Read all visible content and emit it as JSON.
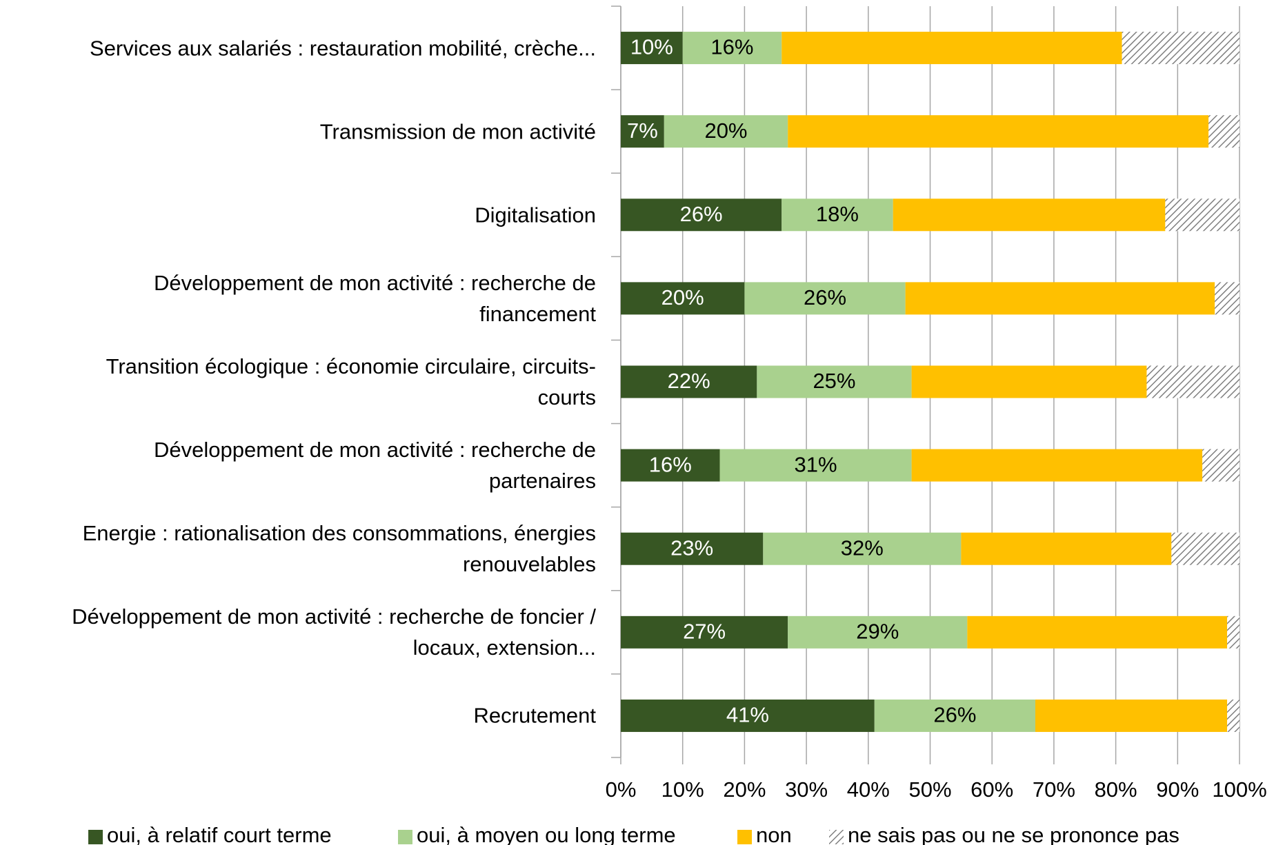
{
  "chart_data": {
    "type": "stacked_bar_horizontal",
    "categories": [
      "Services aux salariés : restauration mobilité, crèche...",
      "Transmission de mon activité",
      "Digitalisation",
      "Développement de mon activité : recherche de\nfinancement",
      "Transition écologique : économie circulaire, circuits-\ncourts",
      "Développement de mon activité : recherche de\npartenaires",
      "Energie : rationalisation des consommations, énergies\nrenouvelables",
      "Développement de mon activité : recherche de foncier /\nlocaux, extension...",
      "Recrutement"
    ],
    "series": [
      {
        "name": "oui, à relatif court terme",
        "color": "#375623",
        "label_color": "#ffffff",
        "values": [
          10,
          7,
          26,
          20,
          22,
          16,
          23,
          27,
          41
        ],
        "value_labels": [
          "10%",
          "7%",
          "26%",
          "20%",
          "22%",
          "16%",
          "23%",
          "27%",
          "41%"
        ]
      },
      {
        "name": "oui, à moyen ou long terme",
        "color": "#a9d18e",
        "label_color": "#000000",
        "values": [
          16,
          20,
          18,
          26,
          25,
          31,
          32,
          29,
          26
        ],
        "value_labels": [
          "16%",
          "20%",
          "18%",
          "26%",
          "25%",
          "31%",
          "32%",
          "29%",
          "26%"
        ]
      },
      {
        "name": "non",
        "color": "#ffc000",
        "values": [
          55,
          68,
          44,
          50,
          38,
          47,
          34,
          42,
          31
        ]
      },
      {
        "name": "ne sais pas ou ne se prononce pas",
        "color": "hatch",
        "values": [
          19,
          5,
          12,
          4,
          15,
          6,
          11,
          2,
          2
        ]
      }
    ],
    "xlim": [
      0,
      100
    ],
    "xticks": [
      {
        "value": 0,
        "label": "0%"
      },
      {
        "value": 10,
        "label": "10%"
      },
      {
        "value": 20,
        "label": "20%"
      },
      {
        "value": 30,
        "label": "30%"
      },
      {
        "value": 40,
        "label": "40%"
      },
      {
        "value": 50,
        "label": "50%"
      },
      {
        "value": 60,
        "label": "60%"
      },
      {
        "value": 70,
        "label": "70%"
      },
      {
        "value": 80,
        "label": "80%"
      },
      {
        "value": 90,
        "label": "90%"
      },
      {
        "value": 100,
        "label": "100%"
      }
    ],
    "grid": true,
    "legend": "bottom"
  }
}
